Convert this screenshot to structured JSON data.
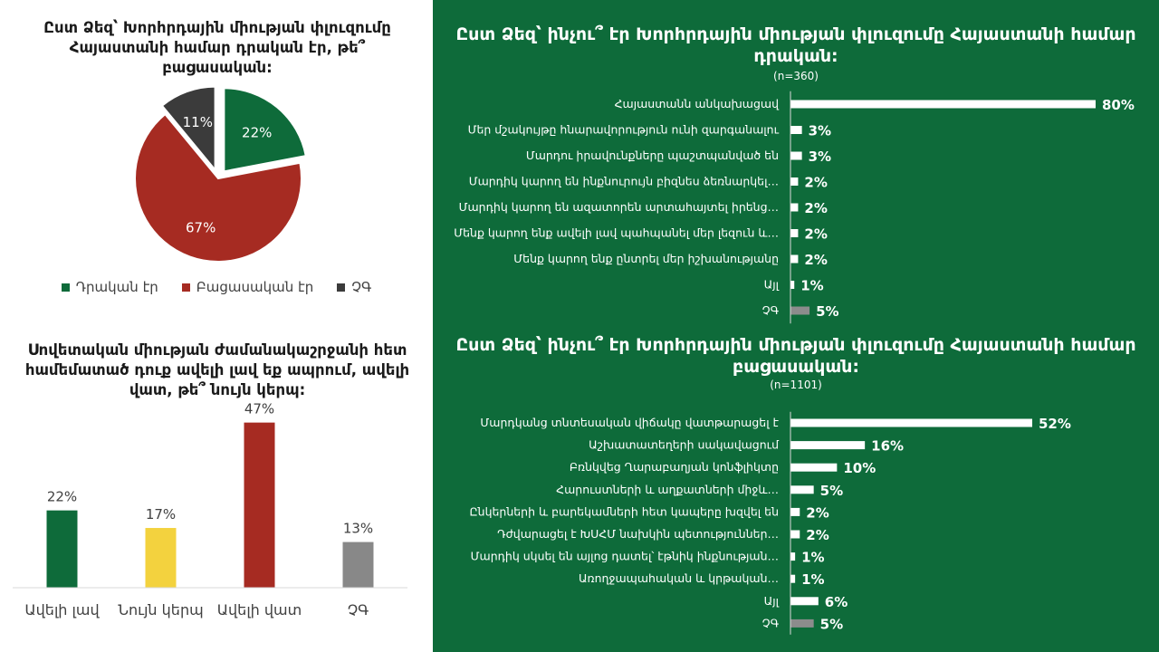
{
  "colors": {
    "green": "#0e6b3a",
    "red": "#a62b22",
    "dark": "#3b3b3b",
    "yellow": "#f3d23e",
    "gray": "#888888",
    "white": "#ffffff"
  },
  "chart_data": [
    {
      "type": "pie",
      "title": "Ըստ Ձեզ՝ Խորհրդային միության փլուզումը Հայաստանի համար դրական էր, թե՞ բացասական:",
      "categories": [
        "Դրական էր",
        "Բացասական էր",
        "ՉԳ"
      ],
      "values": [
        22,
        67,
        11
      ],
      "labels": [
        "22%",
        "67%",
        "11%"
      ],
      "colors": [
        "#0e6b3a",
        "#a62b22",
        "#3b3b3b"
      ],
      "legend": "bottom"
    },
    {
      "type": "bar",
      "title": "Սովետական միության ժամանակաշրջանի հետ համեմատած դուք ավելի լավ եք ապրում, ավելի վատ, թե՞ նույն կերպ:",
      "categories": [
        "Ավելի լավ",
        "Նույն կերպ",
        "Ավելի վատ",
        "ՉԳ"
      ],
      "values": [
        22,
        17,
        47,
        13
      ],
      "labels": [
        "22%",
        "17%",
        "47%",
        "13%"
      ],
      "colors": [
        "#0e6b3a",
        "#f3d23e",
        "#a62b22",
        "#888888"
      ],
      "ylim": [
        0,
        50
      ]
    },
    {
      "type": "bar",
      "orientation": "horizontal",
      "title": "Ըստ Ձեզ՝ ինչու՞ էր Խորհրդային միության փլուզումը Հայաստանի համար դրական:",
      "subtitle": "(n=360)",
      "categories": [
        "Հայաստանն անկախացավ",
        "Մեր մշակույթը հնարավորություն ունի զարգանալու",
        "Մարդու իրավունքները պաշտպանված են",
        "Մարդիկ կարող են ինքնուրույն բիզնես ձեռնարկել…",
        "Մարդիկ կարող են ազատորեն արտահայտել իրենց…",
        "Մենք կարող ենք ավելի լավ պահպանել մեր լեզուն և…",
        "Մենք կարող ենք ընտրել մեր իշխանությանը",
        "Այլ",
        "ՉԳ"
      ],
      "values": [
        80,
        3,
        3,
        2,
        2,
        2,
        2,
        1,
        5
      ],
      "labels": [
        "80%",
        "3%",
        "3%",
        "2%",
        "2%",
        "2%",
        "2%",
        "1%",
        "5%"
      ],
      "xlim": [
        0,
        80
      ]
    },
    {
      "type": "bar",
      "orientation": "horizontal",
      "title": "Ըստ Ձեզ՝ ինչու՞ էր Խորհրդային միության փլուզումը Հայաստանի համար բացասական:",
      "subtitle": "(n=1101)",
      "categories": [
        "Մարդկանց տնտեսական վիճակը վատթարացել է",
        "Աշխատատեղերի սակավացում",
        "Բռնկվեց Ղարաբաղյան կոնֆլիկտը",
        "Հարուստների և աղքատների միջև…",
        "Ընկերների և բարեկամների հետ կապերը խզվել են",
        "Դժվարացել է ԽՍՀՄ նախկին պետություններ…",
        "Մարդիկ սկսել են այլոց դատել՝ էթնիկ ինքնության…",
        "Առողջապահական և կրթական…",
        "Այլ",
        "ՉԳ"
      ],
      "values": [
        52,
        16,
        10,
        5,
        2,
        2,
        1,
        1,
        6,
        5
      ],
      "labels": [
        "52%",
        "16%",
        "10%",
        "5%",
        "2%",
        "2%",
        "1%",
        "1%",
        "6%",
        "5%"
      ],
      "xlim": [
        0,
        52
      ]
    }
  ]
}
